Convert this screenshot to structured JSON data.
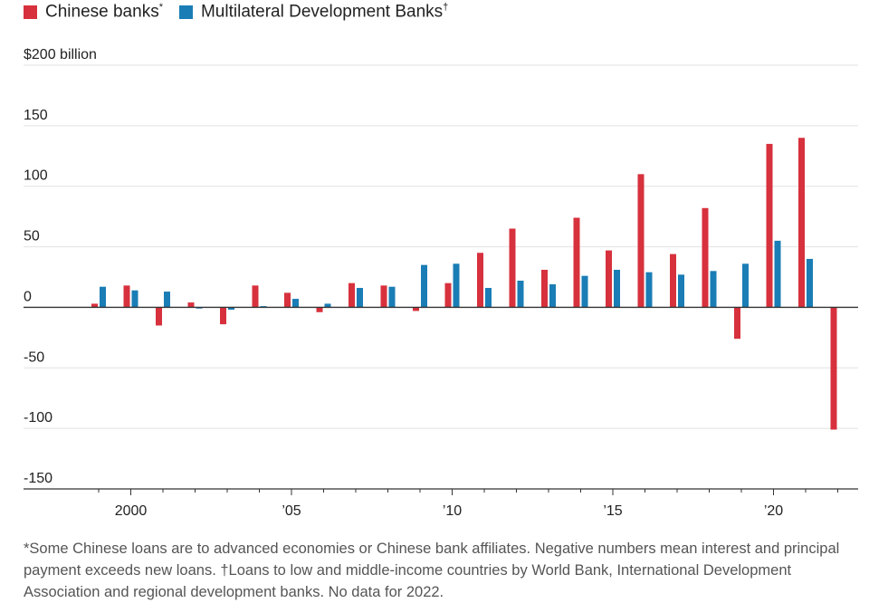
{
  "legend": {
    "chinese_label": "Chinese banks",
    "chinese_mark": "*",
    "mdb_label": "Multilateral Development Banks",
    "mdb_mark": "†"
  },
  "colors": {
    "chinese": "#d7313d",
    "mdb": "#1a7db5",
    "grid": "#e2e2e2",
    "zero_line": "#333333",
    "axis": "#333333"
  },
  "footnote": "*Some Chinese loans are to advanced economies or Chinese bank affiliates. Negative numbers mean interest and principal payment exceeds new loans. †Loans to low and middle-income countries by World Bank, International Development Association and regional development banks. No data for 2022.",
  "chart_data": {
    "type": "bar",
    "title": "",
    "xlabel": "",
    "ylabel": "",
    "categories": [
      1999,
      2000,
      2001,
      2002,
      2003,
      2004,
      2005,
      2006,
      2007,
      2008,
      2009,
      2010,
      2011,
      2012,
      2013,
      2014,
      2015,
      2016,
      2017,
      2018,
      2019,
      2020,
      2021,
      2022
    ],
    "series": [
      {
        "name": "Chinese banks",
        "color_key": "chinese",
        "values": [
          3,
          18,
          -15,
          4,
          -14,
          18,
          12,
          -4,
          20,
          18,
          -3,
          20,
          45,
          65,
          31,
          74,
          47,
          110,
          44,
          82,
          -26,
          135,
          140,
          -101
        ]
      },
      {
        "name": "Multilateral Development Banks",
        "color_key": "mdb",
        "values": [
          17,
          14,
          13,
          -1,
          -2,
          1,
          7,
          3,
          16,
          17,
          35,
          36,
          16,
          22,
          19,
          26,
          31,
          29,
          27,
          30,
          36,
          55,
          40,
          null
        ]
      }
    ],
    "y_ticks": [
      {
        "value": 200,
        "label": "$200 billion"
      },
      {
        "value": 150,
        "label": "150"
      },
      {
        "value": 100,
        "label": "100"
      },
      {
        "value": 50,
        "label": "50"
      },
      {
        "value": 0,
        "label": "0"
      },
      {
        "value": -50,
        "label": "-50"
      },
      {
        "value": -100,
        "label": "-100"
      },
      {
        "value": -150,
        "label": "-150"
      }
    ],
    "x_ticks": [
      {
        "year": 2000,
        "label": "2000"
      },
      {
        "year": 2005,
        "label": "’05"
      },
      {
        "year": 2010,
        "label": "’10"
      },
      {
        "year": 2015,
        "label": "’15"
      },
      {
        "year": 2020,
        "label": "’20"
      }
    ],
    "ylim": [
      -150,
      200
    ],
    "grid": true,
    "legend_position": "top-left"
  }
}
